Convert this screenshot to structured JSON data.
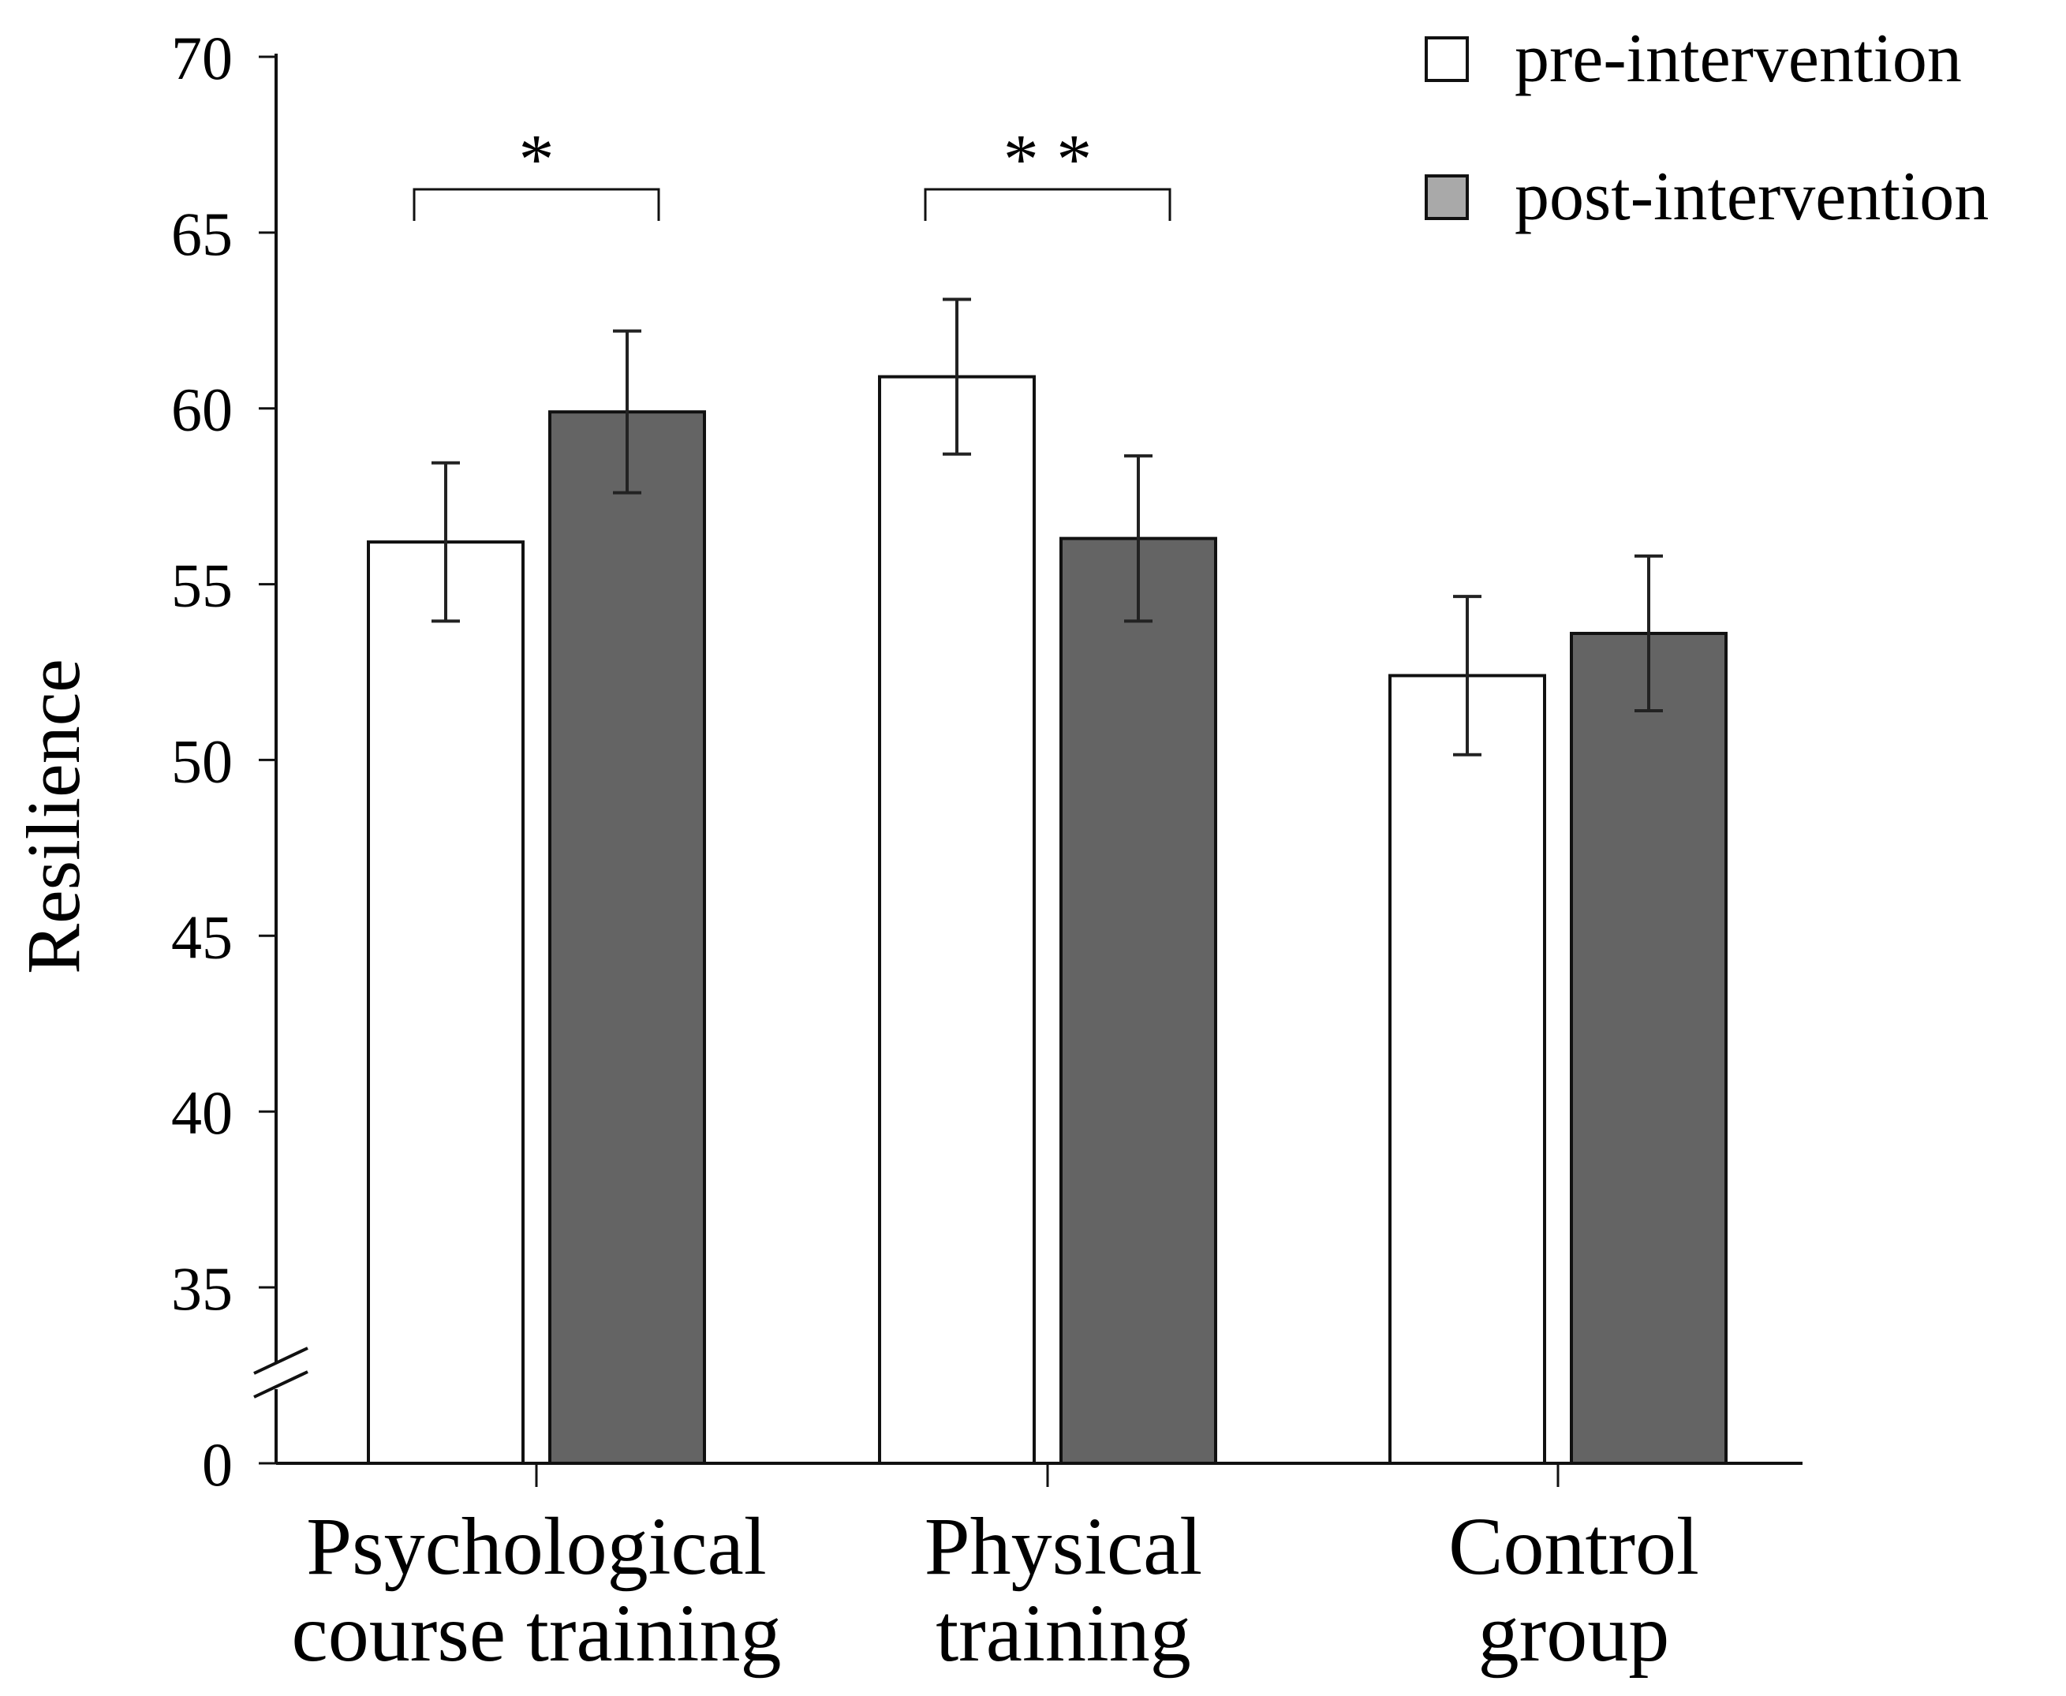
{
  "chart_data": {
    "type": "bar",
    "title": "",
    "xlabel": "",
    "ylabel": "Resilience",
    "ylim": [
      35,
      70
    ],
    "axis_break": true,
    "yticks": [
      "70",
      "65",
      "60",
      "55",
      "50",
      "45",
      "40",
      "35",
      "0"
    ],
    "categories": [
      [
        "Psychological",
        "course training"
      ],
      [
        "Physical",
        "training"
      ],
      [
        "Control",
        "group"
      ]
    ],
    "series": [
      {
        "name": "pre-intervention",
        "color": "#ffffff",
        "values": [
          56.2,
          60.9,
          52.4
        ],
        "errors": [
          2.25,
          2.2,
          2.25
        ]
      },
      {
        "name": "post-intervention",
        "color": "#646464",
        "values": [
          59.9,
          56.3,
          53.6
        ],
        "errors": [
          2.3,
          2.35,
          2.2
        ]
      }
    ],
    "significance": [
      {
        "group": 0,
        "label": "*"
      },
      {
        "group": 1,
        "label": "* *"
      }
    ],
    "legend": {
      "position": "top-right"
    }
  }
}
